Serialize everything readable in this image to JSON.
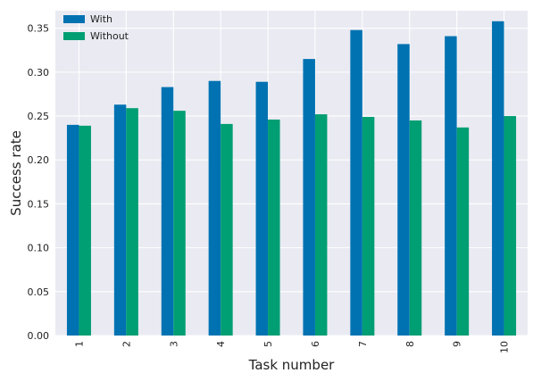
{
  "chart_data": {
    "type": "bar",
    "title": "",
    "xlabel": "Task number",
    "ylabel": "Success rate",
    "categories": [
      "1",
      "2",
      "3",
      "4",
      "5",
      "6",
      "7",
      "8",
      "9",
      "10"
    ],
    "series": [
      {
        "name": "With",
        "color": "#0072B2",
        "values": [
          0.24,
          0.263,
          0.283,
          0.29,
          0.289,
          0.315,
          0.348,
          0.332,
          0.341,
          0.358
        ]
      },
      {
        "name": "Without",
        "color": "#009E73",
        "values": [
          0.239,
          0.259,
          0.256,
          0.241,
          0.246,
          0.252,
          0.249,
          0.245,
          0.237,
          0.25
        ]
      }
    ],
    "ylim": [
      0,
      0.37
    ],
    "yticks": [
      "0.00",
      "0.05",
      "0.10",
      "0.15",
      "0.20",
      "0.25",
      "0.30",
      "0.35"
    ],
    "grid": true,
    "legend_position": "top-left",
    "plot_background": "#EAEAF2"
  }
}
